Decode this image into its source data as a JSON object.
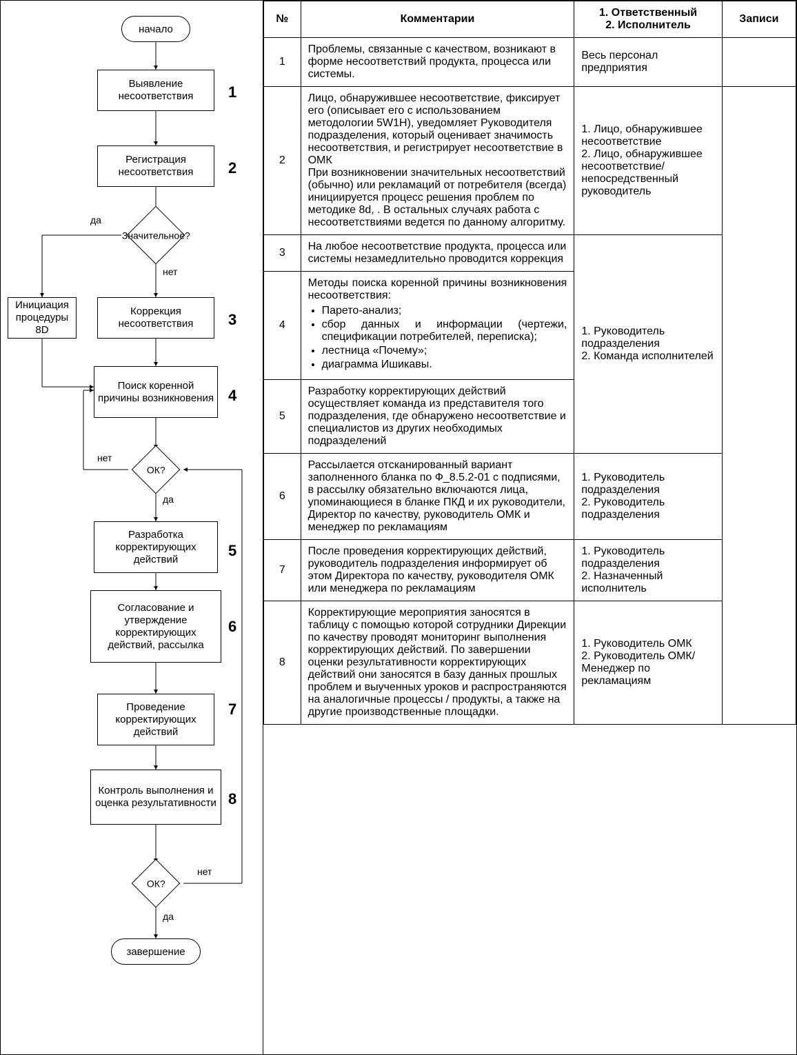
{
  "table": {
    "headers": {
      "num": "№",
      "comment": "Комментарии",
      "responsible": "1. Ответственный\n2. Исполнитель",
      "records": "Записи"
    },
    "rows": [
      {
        "num": "1",
        "comment": "Проблемы, связанные с качеством, возникают в форме несоответствий продукта, процесса или системы.",
        "responsible": "Весь персонал предприятия",
        "records": ""
      },
      {
        "num": "2",
        "comment": "Лицо, обнаружившее несоответствие, фиксирует его                 (описывает его с использованием методологии 5W1H), уведомляет Руководителя подразделения, который оценивает значимость несоответствия, и регистрирует несоответствие в ОМК\nПри возникновении значительных несоответствий (обычно) или рекламаций от потребителя (всегда) инициируется процесс решения проблем по методике 8d,                                    . В остальных случаях работа с несоответствиями ведется по данному алгоритму.",
        "responsible": "1.  Лицо, обнаружившее несоответствие\n2.  Лицо, обнаружившее несоответствие/непосредственный руководитель",
        "records": ""
      },
      {
        "num": "3",
        "comment": "На любое несоответствие продукта, процесса или системы незамедлительно проводится коррекция",
        "responsible_merge_start": true,
        "responsible": "1. Руководитель подразделения\n2. Команда исполнителей",
        "records": ""
      },
      {
        "num": "4",
        "comment_html": "Методы поиска коренной причины возникновения несоответствия:<ul><li>Парето-анализ;</li><li>сбор данных и информации (чертежи, спецификации потребителей, переписка);</li><li>лестница «Почему»;</li><li>диаграмма Ишикавы.</li></ul>",
        "records": ""
      },
      {
        "num": "5",
        "comment": "Разработку корректирующих действий осуществляет команда из представителя того подразделения, где обнаружено несоответствие и специалистов из других необходимых подразделений",
        "records": ""
      },
      {
        "num": "6",
        "comment": "Рассылается отсканированный вариант заполненного бланка по Ф_8.5.2-01 с подписями, в рассылку обязательно включаются лица, упоминающиеся в бланке ПКД и их руководители, Директор по качеству, руководитель ОМК и менеджер по рекламациям",
        "responsible": "1. Руководитель подразделения\n2. Руководитель подразделения",
        "records": ""
      },
      {
        "num": "7",
        "comment": "После проведения корректирующих действий, руководитель подразделения информирует об этом Директора по качеству, руководителя ОМК или менеджера по рекламациям",
        "responsible": "1. Руководитель подразделения\n2. Назначенный исполнитель",
        "records": ""
      },
      {
        "num": "8",
        "comment": "Корректирующие мероприятия заносятся в таблицу               с помощью которой сотрудники Дирекции по качеству проводят мониторинг выполнения корректирующих действий. По завершении оценки результативности корректирующих действий они заносятся в базу данных прошлых проблем и выученных уроков и распространяются на аналогичные процессы / продукты, а также на другие производственные площадки.",
        "responsible": "1. Руководитель ОМК\n2. Руководитель ОМК/Менеджер по рекламациям",
        "records": ""
      }
    ]
  },
  "flowchart": {
    "start": "начало",
    "end": "завершение",
    "nodes": {
      "n1": "Выявление несоответствия",
      "n2": "Регистрация несоответствия",
      "d1": "Значительное?",
      "n8d": "Инициация процедуры 8D",
      "n3": "Коррекция несоответствия",
      "n4": "Поиск коренной причины возникновения",
      "d2": "ОК?",
      "n5": "Разработка корректирующих действий",
      "n6": "Согласование и утверждение корректирующих действий, рассылка",
      "n7": "Проведение корректирующих действий",
      "n8": "Контроль выполнения и оценка результативности",
      "d3": "ОК?"
    },
    "labels": {
      "yes": "да",
      "no": "нет"
    },
    "step_nums": [
      "1",
      "2",
      "3",
      "4",
      "5",
      "6",
      "7",
      "8"
    ],
    "colors": {
      "line": "#000000",
      "fill": "#ffffff"
    }
  }
}
